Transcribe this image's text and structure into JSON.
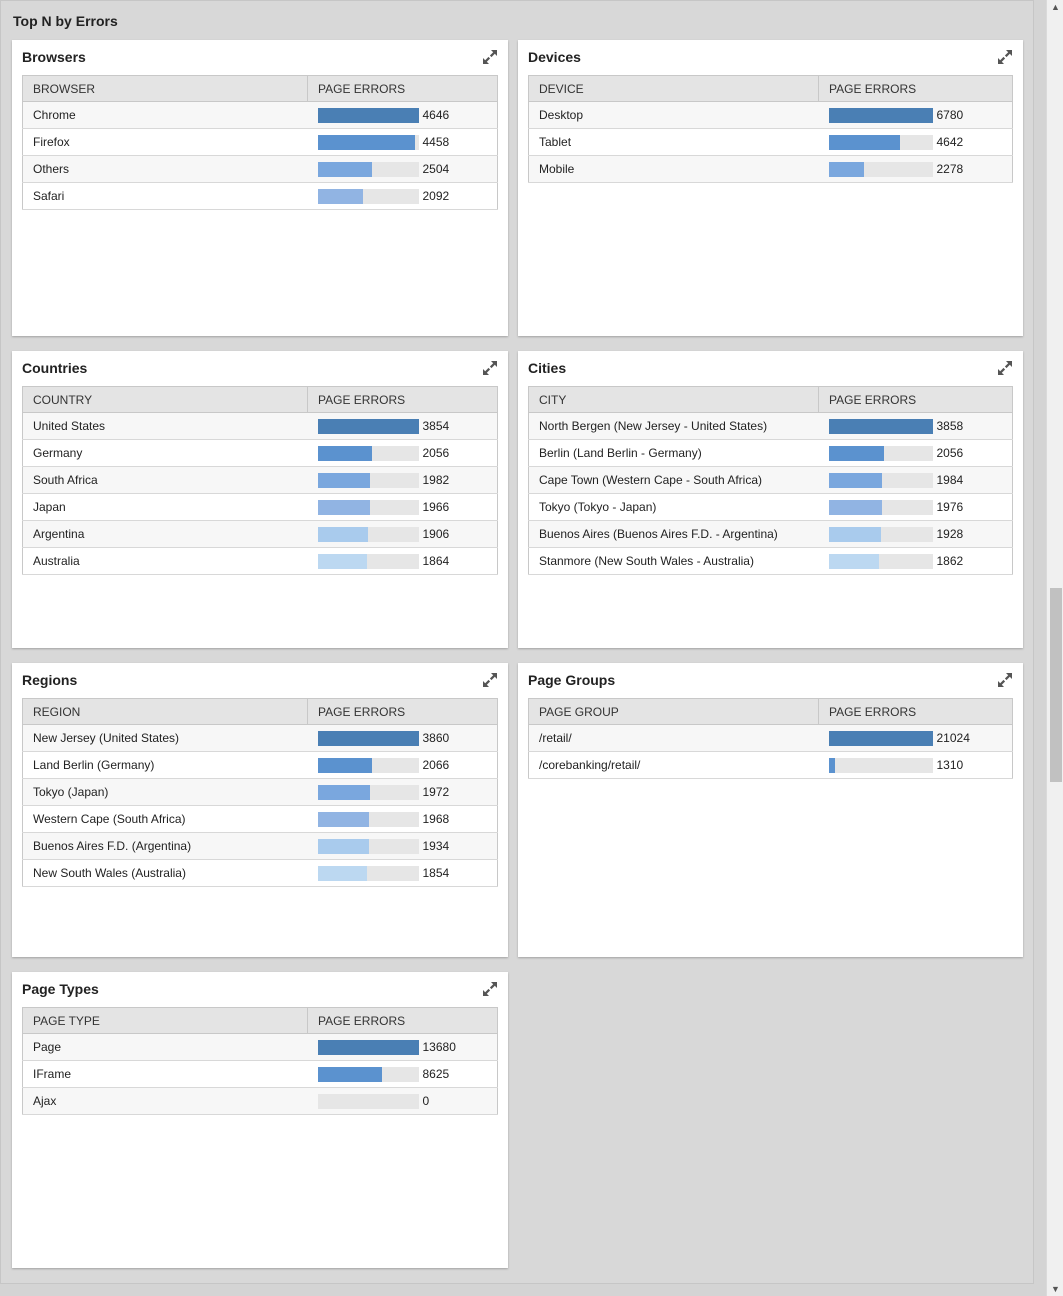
{
  "page_title": "Top N by Errors",
  "colors": {
    "bar1": "#4a7fb4",
    "bar2": "#5b92cf",
    "bar3": "#7aa7de",
    "bar4": "#91b4e3",
    "bar5": "#a9cbed",
    "bar6": "#bcd8f1",
    "track": "#e6e6e6"
  },
  "widgets": [
    {
      "title": "Browsers",
      "col1": "BROWSER",
      "col2": "PAGE ERRORS",
      "max": 4646,
      "rows": [
        {
          "label": "Chrome",
          "value": 4646
        },
        {
          "label": "Firefox",
          "value": 4458
        },
        {
          "label": "Others",
          "value": 2504
        },
        {
          "label": "Safari",
          "value": 2092
        }
      ]
    },
    {
      "title": "Devices",
      "col1": "DEVICE",
      "col2": "PAGE ERRORS",
      "max": 6780,
      "rows": [
        {
          "label": "Desktop",
          "value": 6780
        },
        {
          "label": "Tablet",
          "value": 4642
        },
        {
          "label": "Mobile",
          "value": 2278
        }
      ]
    },
    {
      "title": "Countries",
      "col1": "COUNTRY",
      "col2": "PAGE ERRORS",
      "max": 3854,
      "rows": [
        {
          "label": "United States",
          "value": 3854
        },
        {
          "label": "Germany",
          "value": 2056
        },
        {
          "label": "South Africa",
          "value": 1982
        },
        {
          "label": "Japan",
          "value": 1966
        },
        {
          "label": "Argentina",
          "value": 1906
        },
        {
          "label": "Australia",
          "value": 1864
        }
      ]
    },
    {
      "title": "Cities",
      "col1": "CITY",
      "col2": "PAGE ERRORS",
      "max": 3858,
      "rows": [
        {
          "label": "North Bergen (New Jersey - United States)",
          "value": 3858
        },
        {
          "label": "Berlin (Land Berlin - Germany)",
          "value": 2056
        },
        {
          "label": "Cape Town (Western Cape - South Africa)",
          "value": 1984
        },
        {
          "label": "Tokyo (Tokyo - Japan)",
          "value": 1976
        },
        {
          "label": "Buenos Aires (Buenos Aires F.D. - Argentina)",
          "value": 1928
        },
        {
          "label": "Stanmore (New South Wales - Australia)",
          "value": 1862
        }
      ]
    },
    {
      "title": "Regions",
      "col1": "REGION",
      "col2": "PAGE ERRORS",
      "max": 3860,
      "rows": [
        {
          "label": "New Jersey (United States)",
          "value": 3860
        },
        {
          "label": "Land Berlin (Germany)",
          "value": 2066
        },
        {
          "label": "Tokyo (Japan)",
          "value": 1972
        },
        {
          "label": "Western Cape (South Africa)",
          "value": 1968
        },
        {
          "label": "Buenos Aires F.D. (Argentina)",
          "value": 1934
        },
        {
          "label": "New South Wales (Australia)",
          "value": 1854
        }
      ]
    },
    {
      "title": "Page Groups",
      "col1": "PAGE GROUP",
      "col2": "PAGE ERRORS",
      "max": 21024,
      "rows": [
        {
          "label": "/retail/",
          "value": 21024
        },
        {
          "label": "/corebanking/retail/",
          "value": 1310
        }
      ]
    },
    {
      "title": "Page Types",
      "col1": "PAGE TYPE",
      "col2": "PAGE ERRORS",
      "max": 13680,
      "rows": [
        {
          "label": "Page",
          "value": 13680
        },
        {
          "label": "IFrame",
          "value": 8625
        },
        {
          "label": "Ajax",
          "value": 0
        }
      ]
    }
  ]
}
